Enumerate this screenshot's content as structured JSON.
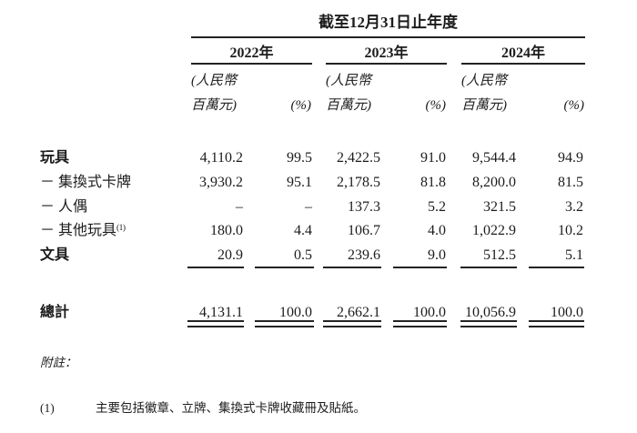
{
  "table": {
    "title": "截至12月31日止年度",
    "year_groups": [
      {
        "year": "2022年",
        "unit_line1": "(人民幣",
        "unit_line2": "百萬元)",
        "pct_label": "(%)"
      },
      {
        "year": "2023年",
        "unit_line1": "(人民幣",
        "unit_line2": "百萬元)",
        "pct_label": "(%)"
      },
      {
        "year": "2024年",
        "unit_line1": "(人民幣",
        "unit_line2": "百萬元)",
        "pct_label": "(%)"
      }
    ],
    "rows": [
      {
        "label": "玩具",
        "cells": [
          "4,110.2",
          "99.5",
          "2,422.5",
          "91.0",
          "9,544.4",
          "94.9"
        ]
      },
      {
        "label": "－ 集換式卡牌",
        "cells": [
          "3,930.2",
          "95.1",
          "2,178.5",
          "81.8",
          "8,200.0",
          "81.5"
        ]
      },
      {
        "label": "－ 人偶",
        "cells": [
          "–",
          "–",
          "137.3",
          "5.2",
          "321.5",
          "3.2"
        ]
      },
      {
        "label": "－ 其他玩具",
        "sup": "(1)",
        "cells": [
          "180.0",
          "4.4",
          "106.7",
          "4.0",
          "1,022.9",
          "10.2"
        ]
      },
      {
        "label": "文具",
        "cells": [
          "20.9",
          "0.5",
          "239.6",
          "9.0",
          "512.5",
          "5.1"
        ]
      }
    ],
    "total_row": {
      "label": "總計",
      "cells": [
        "4,131.1",
        "100.0",
        "2,662.1",
        "100.0",
        "10,056.9",
        "100.0"
      ]
    }
  },
  "notes": {
    "heading": "附註：",
    "items": [
      {
        "marker": "(1)",
        "text": "主要包括徽章、立牌、集換式卡牌收藏冊及貼紙。"
      }
    ]
  },
  "colors": {
    "text": "#1c1c1c",
    "rule": "#232323",
    "background": "#ffffff"
  }
}
